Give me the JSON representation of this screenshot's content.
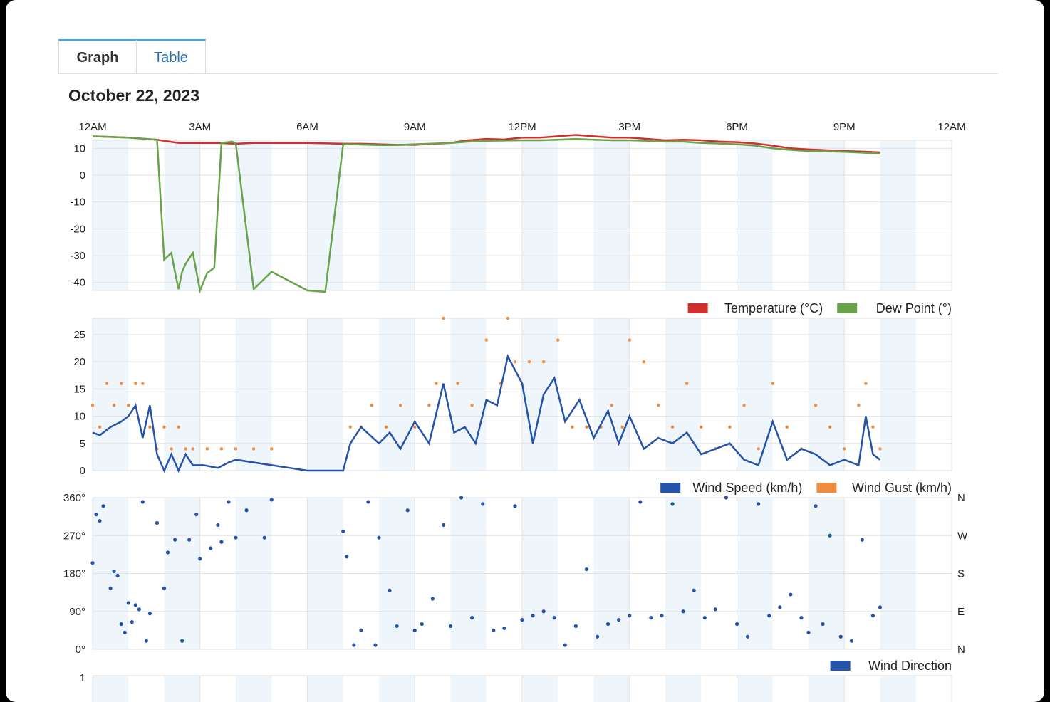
{
  "tabs": [
    {
      "label": "Graph",
      "active": true
    },
    {
      "label": "Table",
      "active": false
    }
  ],
  "page_title": "October 22, 2023",
  "colors": {
    "temperature": "#cf2f2f",
    "dew_point": "#68a34a",
    "wind_speed": "#2453a8",
    "wind_gust": "#ef8c3f",
    "wind_direction": "#2453a8",
    "band": "#eef5fb",
    "grid": "#e2e2e2"
  },
  "time_axis": [
    "12AM",
    "3AM",
    "6AM",
    "9AM",
    "12PM",
    "3PM",
    "6PM",
    "9PM",
    "12AM"
  ],
  "chart_data": [
    {
      "type": "line",
      "title": "",
      "xlabel": "",
      "ylabel": "",
      "x_unit": "hours since midnight",
      "xlim": [
        0,
        24
      ],
      "ylim": [
        -43,
        13
      ],
      "yticks": [
        10,
        0,
        -10,
        -20,
        -30,
        -40
      ],
      "series": [
        {
          "name": "Temperature (°C)",
          "color": "#cf2f2f",
          "x": [
            0,
            1,
            1.8,
            2.4,
            3,
            3.5,
            4,
            4.5,
            5,
            6,
            7,
            7.5,
            8,
            8.5,
            9,
            10,
            10.5,
            11,
            11.5,
            12,
            12.5,
            13,
            13.5,
            14,
            14.5,
            15,
            15.5,
            16,
            16.5,
            17,
            17.5,
            18,
            18.5,
            19,
            19.5,
            20,
            20.5,
            21,
            21.5,
            22
          ],
          "y": [
            14.5,
            14,
            13.2,
            12,
            12,
            12,
            11.7,
            12,
            12,
            12,
            11.7,
            11.7,
            11.5,
            11.3,
            11.3,
            12,
            13,
            13.5,
            13.3,
            14,
            14,
            14.5,
            15,
            14.5,
            14,
            14,
            13.5,
            13,
            13.2,
            13,
            12.5,
            12.3,
            11.8,
            11,
            10,
            9.6,
            9.3,
            9,
            8.8,
            8.5
          ]
        },
        {
          "name": "Dew Point (°)",
          "color": "#68a34a",
          "x": [
            0,
            1,
            1.8,
            2,
            2.2,
            2.3,
            2.4,
            2.5,
            2.6,
            2.8,
            3,
            3.2,
            3.4,
            3.6,
            3.9,
            4,
            4.5,
            5,
            6,
            6.5,
            7,
            7.5,
            8,
            8.5,
            9,
            10,
            10.5,
            11,
            11.5,
            12,
            12.5,
            13,
            13.5,
            14,
            14.5,
            15,
            15.5,
            16,
            16.5,
            17,
            17.5,
            18,
            18.5,
            19,
            19.5,
            20,
            20.5,
            21,
            21.5,
            22
          ],
          "y": [
            14.5,
            14,
            13.2,
            -31.5,
            -29,
            -36,
            -42.5,
            -36,
            -33,
            -29,
            -43,
            -36.5,
            -34.5,
            12,
            12.5,
            11.8,
            -42.5,
            -36,
            -43,
            -43.5,
            11.5,
            11.4,
            11.2,
            11.2,
            11.5,
            12,
            12.5,
            12.8,
            12.9,
            13,
            13,
            13.2,
            13.5,
            13.2,
            13,
            13,
            12.8,
            12.5,
            12.5,
            12,
            11.8,
            11.5,
            11,
            10,
            9.4,
            9,
            8.9,
            8.7,
            8.4,
            8
          ]
        }
      ],
      "legend": "bottom-right"
    },
    {
      "type": "line",
      "title": "",
      "xlabel": "",
      "ylabel": "",
      "x_unit": "hours since midnight",
      "xlim": [
        0,
        24
      ],
      "ylim": [
        0,
        28
      ],
      "yticks": [
        25,
        20,
        15,
        10,
        5,
        0
      ],
      "series": [
        {
          "name": "Wind Speed (km/h)",
          "color": "#2453a8",
          "x": [
            0,
            0.2,
            0.5,
            0.8,
            1,
            1.2,
            1.4,
            1.6,
            1.8,
            2,
            2.2,
            2.4,
            2.6,
            2.8,
            3.1,
            3.5,
            3.8,
            4,
            4.5,
            5,
            5.5,
            6,
            6.5,
            7,
            7.2,
            7.5,
            8,
            8.3,
            8.6,
            9,
            9.4,
            9.8,
            10.1,
            10.4,
            10.7,
            11,
            11.3,
            11.6,
            12,
            12.3,
            12.6,
            12.9,
            13.2,
            13.6,
            14,
            14.4,
            14.7,
            15,
            15.4,
            15.8,
            16.2,
            16.6,
            17,
            17.4,
            17.8,
            18.2,
            18.6,
            19,
            19.4,
            19.8,
            20.2,
            20.6,
            21,
            21.4,
            21.6,
            21.8,
            22
          ],
          "y": [
            7,
            6.5,
            8,
            9,
            10,
            12,
            6,
            12,
            3,
            0,
            3,
            0,
            3,
            1,
            1,
            0.5,
            1.5,
            2,
            1.5,
            1,
            0.5,
            0,
            0,
            0,
            5,
            8,
            5,
            7,
            4,
            9,
            5,
            16,
            7,
            8,
            5,
            13,
            12,
            21,
            16,
            5,
            14,
            17,
            9,
            13,
            6,
            11,
            5,
            10,
            4,
            6,
            5,
            7,
            3,
            4,
            5,
            2,
            1,
            9,
            2,
            4,
            3,
            1,
            2,
            1,
            10,
            3,
            2
          ]
        },
        {
          "name": "Wind Gust (km/h)",
          "color": "#ef8c3f",
          "x": [
            0,
            0.2,
            0.4,
            0.6,
            0.8,
            1,
            1.2,
            1.4,
            1.6,
            1.8,
            2,
            2.2,
            2.4,
            2.6,
            2.8,
            3.2,
            3.6,
            4,
            4.5,
            5,
            7.2,
            7.5,
            7.8,
            8.2,
            8.6,
            9,
            9.4,
            9.6,
            9.8,
            10.2,
            10.6,
            11,
            11.4,
            11.6,
            11.8,
            12.2,
            12.6,
            13,
            13.4,
            13.8,
            14.2,
            14.5,
            14.8,
            15,
            15.4,
            15.8,
            16.2,
            16.6,
            17,
            17.4,
            17.8,
            18.2,
            18.6,
            19,
            19.4,
            19.8,
            20.2,
            20.6,
            21,
            21.4,
            21.6,
            21.8,
            22
          ],
          "y": [
            12,
            8,
            16,
            12,
            16,
            12,
            16,
            16,
            8,
            4,
            8,
            4,
            8,
            4,
            4,
            4,
            4,
            4,
            4,
            4,
            8,
            8,
            12,
            8,
            12,
            8,
            12,
            16,
            28,
            16,
            12,
            24,
            16,
            28,
            20,
            20,
            20,
            24,
            8,
            8,
            8,
            12,
            8,
            24,
            20,
            12,
            8,
            16,
            8,
            4,
            8,
            12,
            4,
            16,
            8,
            4,
            12,
            8,
            4,
            12,
            16,
            8,
            4
          ]
        }
      ],
      "legend": "bottom-right"
    },
    {
      "type": "scatter",
      "title": "",
      "xlabel": "",
      "ylabel": "",
      "x_unit": "hours since midnight",
      "xlim": [
        0,
        24
      ],
      "ylim": [
        0,
        360
      ],
      "yticks": [
        "360°",
        "270°",
        "180°",
        "90°",
        "0°"
      ],
      "right_labels": [
        "N",
        "W",
        "S",
        "E",
        "N"
      ],
      "series": [
        {
          "name": "Wind Direction",
          "color": "#2453a8",
          "x": [
            0,
            0.1,
            0.2,
            0.3,
            0.5,
            0.6,
            0.7,
            0.8,
            0.9,
            1,
            1.1,
            1.2,
            1.3,
            1.4,
            1.5,
            1.6,
            1.8,
            2,
            2.1,
            2.3,
            2.5,
            2.7,
            2.9,
            3,
            3.3,
            3.5,
            3.6,
            3.8,
            4,
            4.3,
            4.8,
            5,
            7,
            7.1,
            7.3,
            7.5,
            7.7,
            7.9,
            8,
            8.3,
            8.5,
            8.8,
            9,
            9.2,
            9.5,
            9.8,
            10,
            10.3,
            10.6,
            10.9,
            11.2,
            11.5,
            11.8,
            12,
            12.3,
            12.6,
            12.9,
            13.2,
            13.5,
            13.8,
            14.1,
            14.4,
            14.7,
            15,
            15.3,
            15.6,
            15.9,
            16.2,
            16.5,
            16.8,
            17.1,
            17.4,
            17.7,
            18,
            18.3,
            18.6,
            18.9,
            19.2,
            19.5,
            19.8,
            20,
            20.2,
            20.4,
            20.6,
            20.9,
            21.2,
            21.5,
            21.8,
            22
          ],
          "y": [
            205,
            320,
            305,
            340,
            145,
            185,
            175,
            60,
            40,
            110,
            65,
            105,
            95,
            350,
            20,
            85,
            300,
            145,
            230,
            260,
            20,
            260,
            320,
            215,
            240,
            295,
            255,
            350,
            265,
            330,
            265,
            355,
            280,
            220,
            10,
            45,
            350,
            10,
            265,
            140,
            55,
            330,
            45,
            60,
            120,
            295,
            55,
            360,
            75,
            345,
            45,
            50,
            340,
            70,
            80,
            90,
            75,
            10,
            55,
            190,
            30,
            60,
            70,
            80,
            350,
            75,
            80,
            345,
            90,
            140,
            75,
            95,
            360,
            60,
            30,
            345,
            80,
            100,
            130,
            75,
            40,
            340,
            60,
            270,
            30,
            20,
            260,
            80,
            100
          ]
        }
      ],
      "legend": "bottom-right"
    }
  ],
  "bottom_chart": {
    "ytick": "1"
  }
}
